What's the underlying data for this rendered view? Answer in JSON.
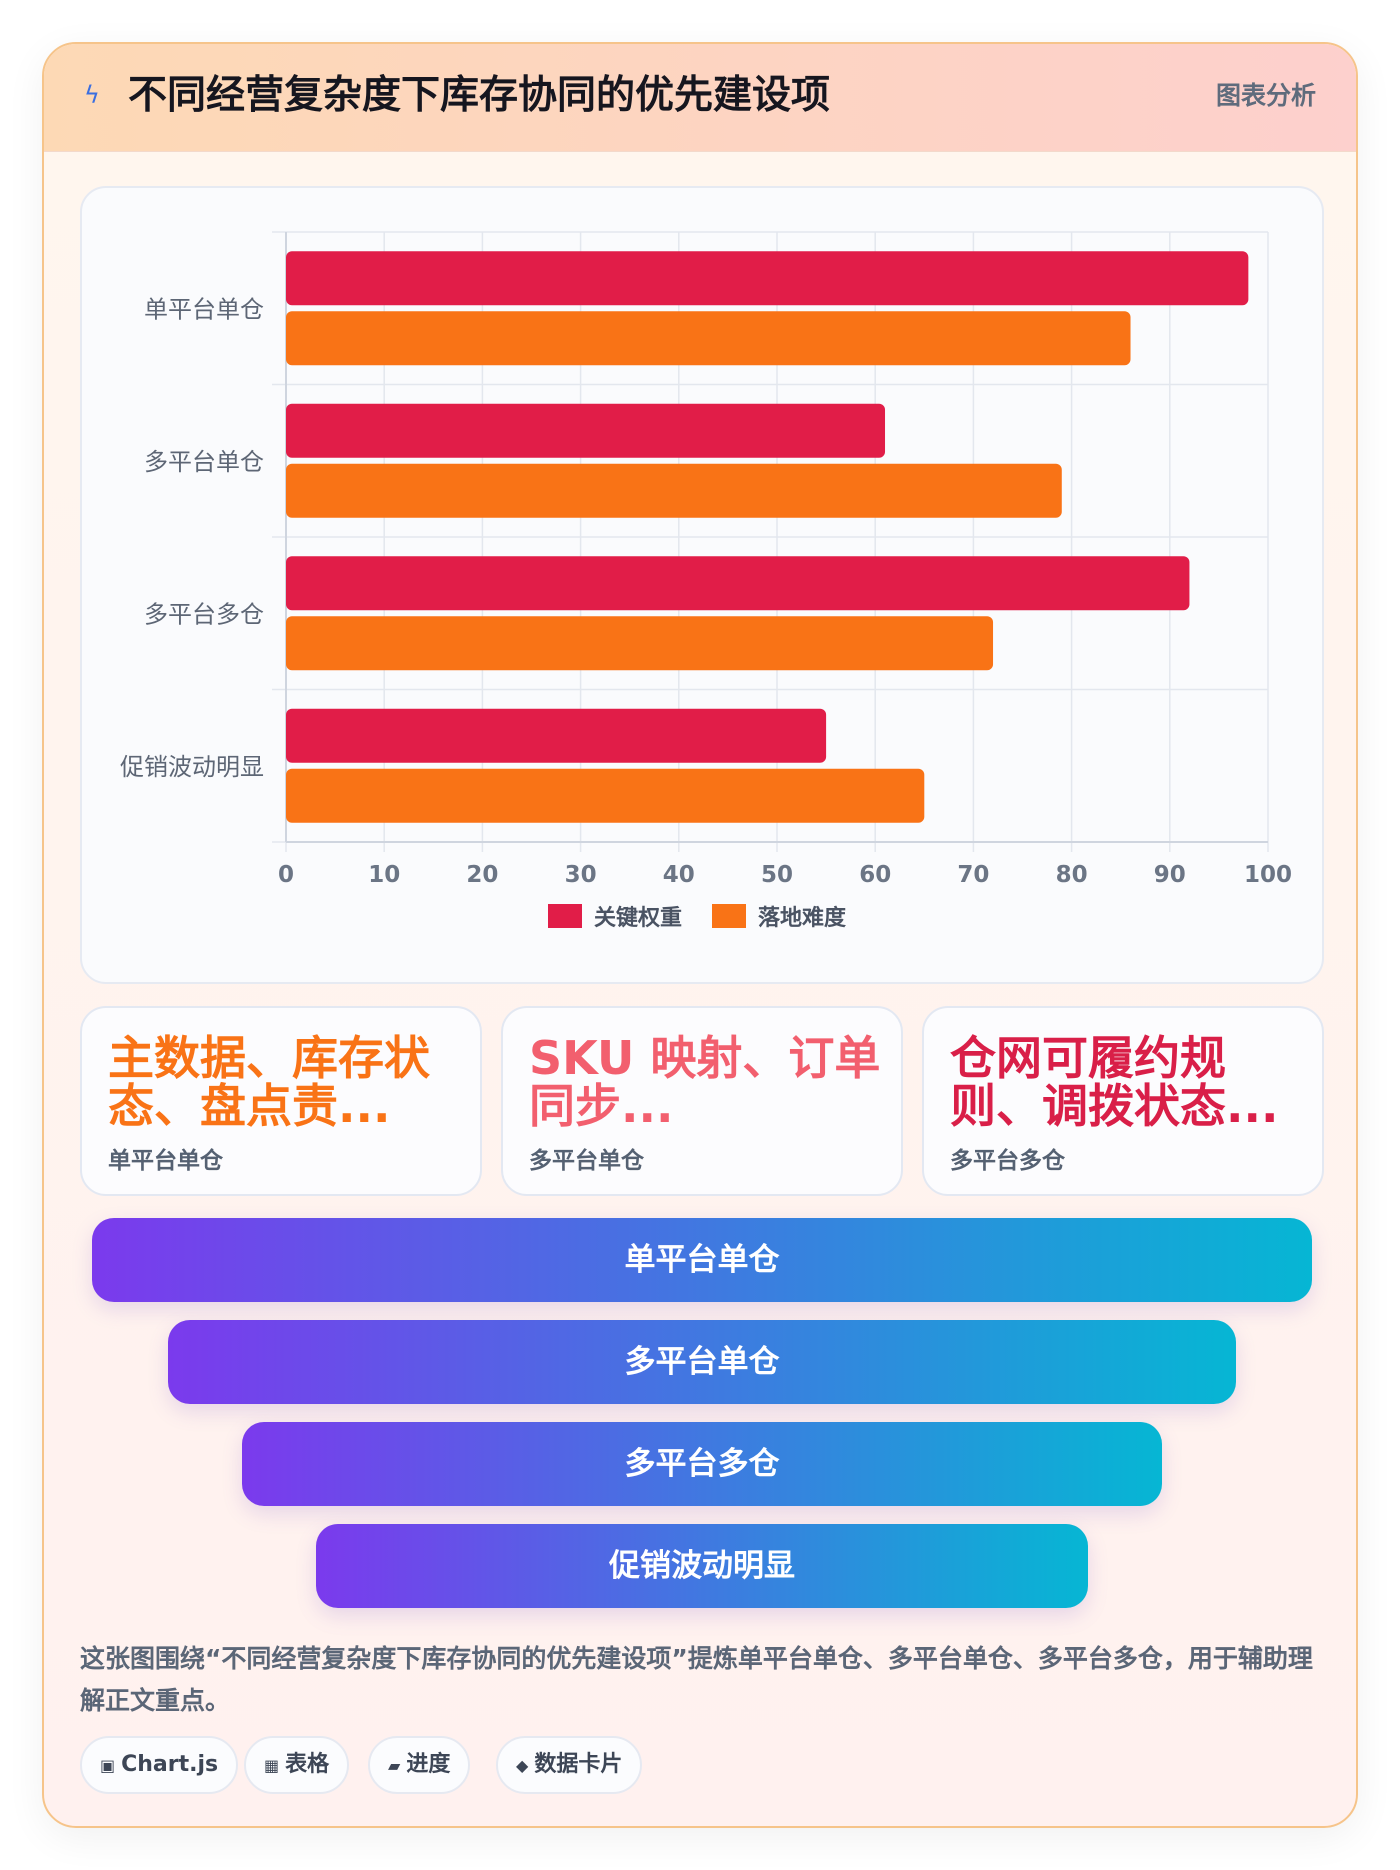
{
  "header": {
    "icon": "lightning-icon",
    "title": "不同经营复杂度下库存协同的优先建设项",
    "tag": "图表分析"
  },
  "chart_data": {
    "type": "bar",
    "orientation": "horizontal",
    "categories": [
      "单平台单仓",
      "多平台单仓",
      "多平台多仓",
      "促销波动明显"
    ],
    "series": [
      {
        "name": "关键权重",
        "values": [
          98,
          61,
          92,
          55
        ],
        "color": "#e11d48"
      },
      {
        "name": "落地难度",
        "values": [
          86,
          79,
          72,
          65
        ],
        "color": "#f97316"
      }
    ],
    "xlim": [
      0,
      100
    ],
    "xticks": [
      0,
      10,
      20,
      30,
      40,
      50,
      60,
      70,
      80,
      90,
      100
    ],
    "grid": true,
    "legend": "bottom"
  },
  "stats": [
    {
      "value": "主数据、库存状态、盘点责...",
      "label": "单平台单仓",
      "color": "#f97316"
    },
    {
      "value": "SKU 映射、订单同步...",
      "label": "多平台单仓",
      "color": "#f25f6e"
    },
    {
      "value": "仓网可履约规则、调拨状态...",
      "label": "多平台多仓",
      "color": "#d91f48"
    }
  ],
  "funnel": [
    "单平台单仓",
    "多平台单仓",
    "多平台多仓",
    "促销波动明显"
  ],
  "description": "这张图围绕“不同经营复杂度下库存协同的优先建设项”提炼单平台单仓、多平台单仓、多平台多仓，用于辅助理解正文重点。",
  "chips": [
    {
      "icon": "▣",
      "label": "Chart.js"
    },
    {
      "icon": "▦",
      "label": "表格"
    },
    {
      "icon": "▰",
      "label": "进度"
    },
    {
      "icon": "◆",
      "label": "数据卡片"
    }
  ]
}
